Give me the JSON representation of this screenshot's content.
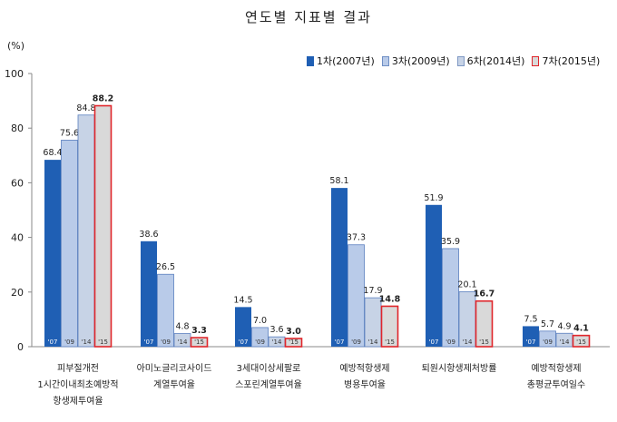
{
  "chart_data": {
    "type": "bar",
    "title": "연도별 지표별 결과",
    "ylabel": "(%)",
    "ylim": [
      0,
      100
    ],
    "yticks": [
      0,
      20,
      40,
      60,
      80,
      100
    ],
    "grid": false,
    "legend_position": "top-right",
    "year_tags": [
      "'07",
      "'09",
      "'14",
      "'15"
    ],
    "categories": [
      [
        "피부절개전",
        "1시간이내최초예방적",
        "항생제투여율"
      ],
      [
        "아미노글리코사이드",
        "계열투여율"
      ],
      [
        "3세대이상세팔로",
        "스포린계열투여율"
      ],
      [
        "예방적항생제",
        "병용투여율"
      ],
      [
        "퇴원시항생제처방률"
      ],
      [
        "예방적항생제",
        "총평균투여일수"
      ]
    ],
    "series": [
      {
        "name": "1차(2007년)",
        "color": "#1f5fb4",
        "values": [
          68.4,
          38.6,
          14.5,
          58.1,
          51.9,
          7.5
        ]
      },
      {
        "name": "3차(2009년)",
        "color": "#b9cbe9",
        "values": [
          75.6,
          26.5,
          7.0,
          37.3,
          35.9,
          5.7
        ]
      },
      {
        "name": "6차(2014년)",
        "color": "#c7d3e6",
        "values": [
          84.8,
          4.8,
          3.6,
          17.9,
          20.1,
          4.9
        ]
      },
      {
        "name": "7차(2015년)",
        "color": "#d9d9d9",
        "stroke": "#e0262b",
        "values": [
          88.2,
          3.3,
          3.0,
          14.8,
          16.7,
          4.1
        ]
      }
    ],
    "value_labels": [
      [
        "68.4",
        "38.6",
        "14.5",
        "58.1",
        "51.9",
        "7.5"
      ],
      [
        "75.6",
        "26.5",
        "7.0",
        "37.3",
        "35.9",
        "5.7"
      ],
      [
        "84.8",
        "4.8",
        "3.6",
        "17.9",
        "20.1",
        "4.9"
      ],
      [
        "88.2",
        "3.3",
        "3.0",
        "14.8",
        "16.7",
        "4.1"
      ]
    ]
  }
}
